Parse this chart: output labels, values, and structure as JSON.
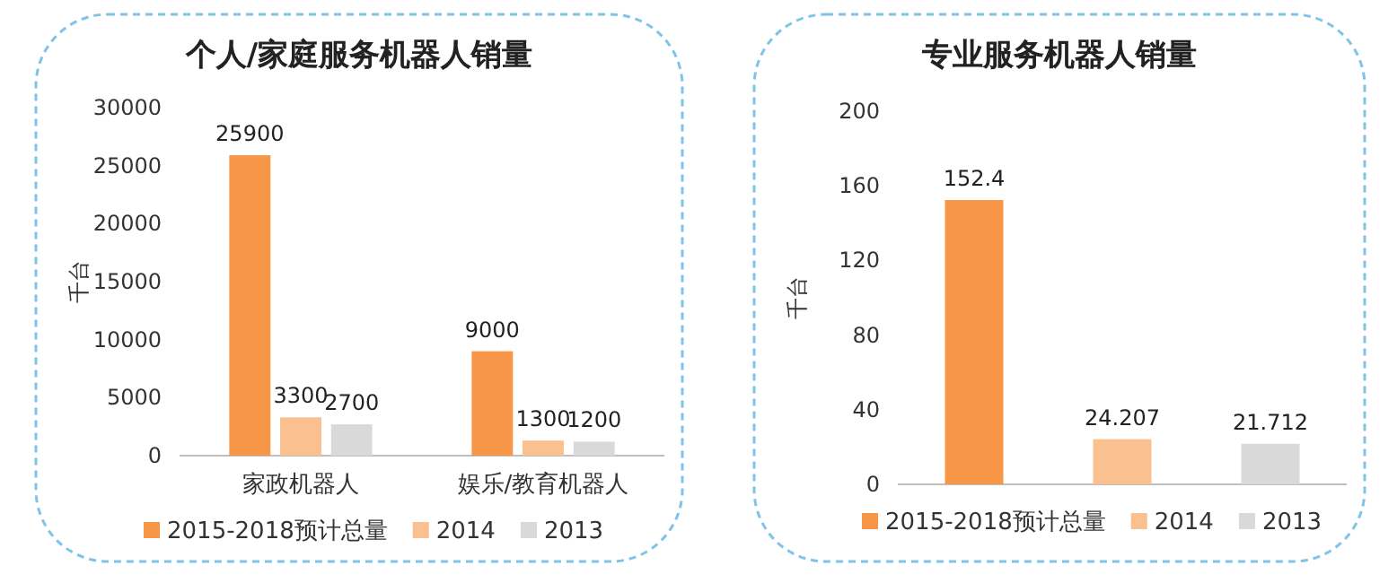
{
  "chart_data": [
    {
      "type": "bar",
      "title": "个人/家庭服务机器人销量",
      "ylabel": "千台",
      "categories": [
        "家政机器人",
        "娱乐/教育机器人"
      ],
      "series": [
        {
          "name": "2015-2018预计总量",
          "color": "#f79646",
          "values": [
            25900,
            9000
          ]
        },
        {
          "name": "2014",
          "color": "#fac090",
          "values": [
            3300,
            1300
          ]
        },
        {
          "name": "2013",
          "color": "#d9d9d9",
          "values": [
            2700,
            1200
          ]
        }
      ],
      "ylim": [
        0,
        30000
      ],
      "yticks": [
        0,
        5000,
        10000,
        15000,
        20000,
        25000,
        30000
      ],
      "data_labels": true,
      "legend": "bottom",
      "grid": false
    },
    {
      "type": "bar",
      "title": "专业服务机器人销量",
      "ylabel": "千台",
      "categories": [
        null
      ],
      "series": [
        {
          "name": "2015-2018预计总量",
          "color": "#f79646",
          "values": [
            152.4
          ]
        },
        {
          "name": "2014",
          "color": "#fac090",
          "values": [
            24.207
          ]
        },
        {
          "name": "2013",
          "color": "#d9d9d9",
          "values": [
            21.712
          ]
        }
      ],
      "ylim": [
        0,
        200
      ],
      "yticks": [
        0,
        40,
        80,
        120,
        160,
        200
      ],
      "data_labels": true,
      "legend": "bottom",
      "grid": false
    }
  ]
}
